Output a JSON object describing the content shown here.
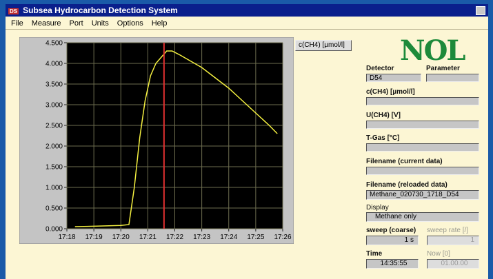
{
  "window": {
    "title": "Subsea Hydrocarbon Detection System",
    "icon": "DS"
  },
  "menu": [
    "File",
    "Measure",
    "Port",
    "Units",
    "Options",
    "Help"
  ],
  "chart_data": {
    "type": "line",
    "xlim": [
      1038,
      1046
    ],
    "xticks": [
      {
        "value": 1038,
        "label": "17:18"
      },
      {
        "value": 1039,
        "label": "17:19"
      },
      {
        "value": 1040,
        "label": "17:20"
      },
      {
        "value": 1041,
        "label": "17:21"
      },
      {
        "value": 1042,
        "label": "17:22"
      },
      {
        "value": 1043,
        "label": "17:23"
      },
      {
        "value": 1044,
        "label": "17:24"
      },
      {
        "value": 1045,
        "label": "17:25"
      },
      {
        "value": 1046,
        "label": "17:26"
      }
    ],
    "ylim": [
      0,
      4.5
    ],
    "yticks": [
      {
        "value": 0,
        "label": "0.000"
      },
      {
        "value": 0.5,
        "label": "0.500"
      },
      {
        "value": 1,
        "label": "1.000"
      },
      {
        "value": 1.5,
        "label": "1.500"
      },
      {
        "value": 2,
        "label": "2.000"
      },
      {
        "value": 2.5,
        "label": "2.500"
      },
      {
        "value": 3,
        "label": "3.000"
      },
      {
        "value": 3.5,
        "label": "3.500"
      },
      {
        "value": 4,
        "label": "4.000"
      },
      {
        "value": 4.5,
        "label": "4.500"
      }
    ],
    "grid": true,
    "cursor": 1041.6,
    "cursor_color": "#e03030",
    "series": [
      {
        "name": "c(CH4) [µmol/l]",
        "color": "#f4f040",
        "x": [
          1038.3,
          1039,
          1040,
          1040.3,
          1040.5,
          1040.7,
          1040.9,
          1041.1,
          1041.3,
          1041.5,
          1041.7,
          1041.9,
          1042.2,
          1042.6,
          1043,
          1043.5,
          1044,
          1044.5,
          1045,
          1045.5,
          1045.8
        ],
        "values": [
          0.05,
          0.06,
          0.08,
          0.1,
          1.0,
          2.2,
          3.1,
          3.7,
          4.0,
          4.15,
          4.3,
          4.3,
          4.2,
          4.05,
          3.9,
          3.65,
          3.4,
          3.1,
          2.8,
          2.5,
          2.3
        ]
      }
    ]
  },
  "panel": {
    "logo": "NOL",
    "detector_label": "Detector",
    "detector_value": "D54",
    "parameter_label": "Parameter",
    "conc_label": "c(CH4) [µmol/l]",
    "voltage_label": "U(CH4) [V]",
    "tgas_label": "T-Gas [°C]",
    "file_current_label": "Filename (current data)",
    "file_reloaded_label": "Filename (reloaded data)",
    "file_reloaded_value": "Methane_020730_1718_D54",
    "display_label": "Display",
    "display_value": "Methane only",
    "sweep_label": "sweep (coarse)",
    "sweep_value": "1 s",
    "sweep_rate_label": "sweep rate [/]",
    "sweep_rate_value": "1",
    "time_label": "Time",
    "time_value": "14:35:55",
    "now_label": "Now [0]",
    "now_value": "01.00.00"
  }
}
